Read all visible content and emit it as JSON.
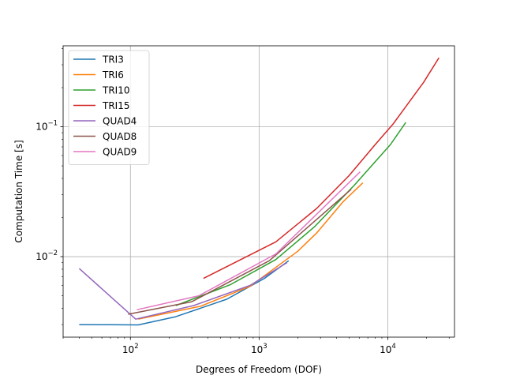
{
  "chart_data": {
    "type": "line",
    "xlabel": "Degrees of Freedom (DOF)",
    "ylabel": "Computation Time [s]",
    "xscale": "log",
    "yscale": "log",
    "xlim": [
      30,
      33000
    ],
    "ylim": [
      0.0024,
      0.42
    ],
    "grid": "major",
    "legend_position": "top-left",
    "x_ticks": [
      {
        "value": 100,
        "base": "10",
        "exp": "2"
      },
      {
        "value": 1000,
        "base": "10",
        "exp": "3"
      },
      {
        "value": 10000,
        "base": "10",
        "exp": "4"
      }
    ],
    "y_ticks": [
      {
        "value": 0.01,
        "base": "10",
        "exp": "−2"
      },
      {
        "value": 0.1,
        "base": "10",
        "exp": "−1"
      }
    ],
    "series": [
      {
        "name": "TRI3",
        "color": "#1f77b4",
        "x": [
          40,
          70,
          115,
          225,
          560,
          1100,
          1700
        ],
        "y": [
          0.003,
          0.00299,
          0.00298,
          0.00345,
          0.0047,
          0.0068,
          0.0093
        ]
      },
      {
        "name": "TRI6",
        "color": "#ff7f0e",
        "x": [
          115,
          350,
          850,
          2000,
          2800,
          4500,
          6400
        ],
        "y": [
          0.0033,
          0.00415,
          0.0059,
          0.011,
          0.0152,
          0.0265,
          0.037
        ]
      },
      {
        "name": "TRI10",
        "color": "#2ca02c",
        "x": [
          225,
          600,
          1350,
          2700,
          5500,
          10500,
          13800
        ],
        "y": [
          0.0042,
          0.0061,
          0.0095,
          0.017,
          0.0355,
          0.073,
          0.108
        ]
      },
      {
        "name": "TRI15",
        "color": "#d62728",
        "x": [
          370,
          1350,
          2800,
          5000,
          8000,
          11000,
          19000,
          25000
        ],
        "y": [
          0.0068,
          0.013,
          0.0235,
          0.042,
          0.073,
          0.105,
          0.22,
          0.34
        ]
      },
      {
        "name": "QUAD4",
        "color": "#9467bd",
        "x": [
          40,
          110,
          310,
          850,
          1650
        ],
        "y": [
          0.0081,
          0.0033,
          0.0042,
          0.006,
          0.009
        ]
      },
      {
        "name": "QUAD8",
        "color": "#8c564b",
        "x": [
          96,
          300,
          1200,
          5200
        ],
        "y": [
          0.0036,
          0.0045,
          0.0093,
          0.033
        ]
      },
      {
        "name": "QUAD9",
        "color": "#e377c2",
        "x": [
          112,
          340,
          1350,
          6100
        ],
        "y": [
          0.0039,
          0.005,
          0.0105,
          0.045
        ]
      }
    ]
  }
}
